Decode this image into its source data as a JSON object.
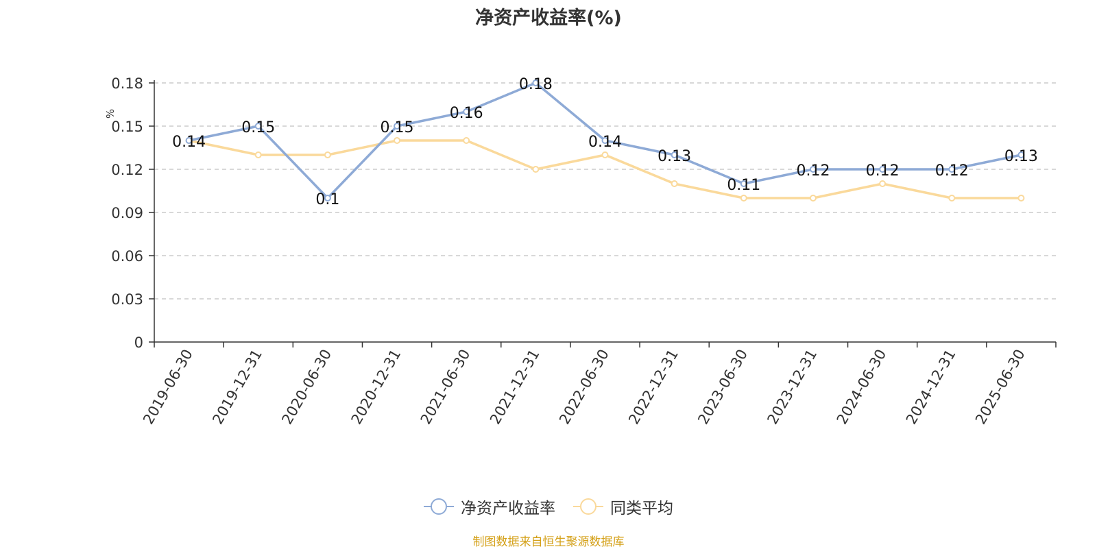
{
  "chart_data": {
    "type": "line",
    "title": "净资产收益率(%)",
    "ylabel": "%",
    "ylim": [
      0,
      0.18
    ],
    "yticks": [
      "0",
      "0.03",
      "0.06",
      "0.09",
      "0.12",
      "0.15",
      "0.18"
    ],
    "ytick_values": [
      0,
      0.03,
      0.06,
      0.09,
      0.12,
      0.15,
      0.18
    ],
    "categories": [
      "2019-06-30",
      "2019-12-31",
      "2020-06-30",
      "2020-12-31",
      "2021-06-30",
      "2021-12-31",
      "2022-06-30",
      "2022-12-31",
      "2023-06-30",
      "2023-12-31",
      "2024-06-30",
      "2024-12-31",
      "2025-06-30"
    ],
    "series": [
      {
        "name": "净资产收益率",
        "color": "#8eaad6",
        "values": [
          0.14,
          0.15,
          0.1,
          0.15,
          0.16,
          0.18,
          0.14,
          0.13,
          0.11,
          0.12,
          0.12,
          0.12,
          0.13
        ],
        "labels": [
          "0.14",
          "0.15",
          "0.1",
          "0.15",
          "0.16",
          "0.18",
          "0.14",
          "0.13",
          "0.11",
          "0.12",
          "0.12",
          "0.12",
          "0.13"
        ]
      },
      {
        "name": "同类平均",
        "color": "#fad99b",
        "values": [
          0.14,
          0.13,
          0.13,
          0.14,
          0.14,
          0.12,
          0.13,
          0.11,
          0.1,
          0.1,
          0.11,
          0.1,
          0.1
        ]
      }
    ],
    "grid": true,
    "legend_position": "bottom"
  },
  "source": "制图数据来自恒生聚源数据库"
}
